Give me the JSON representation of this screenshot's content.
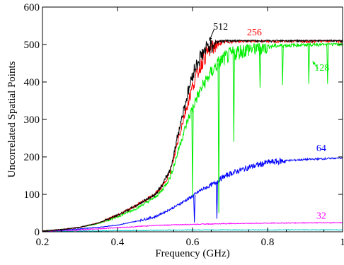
{
  "chart_data": {
    "type": "line",
    "title": "",
    "xlabel": "Frequency (GHz)",
    "ylabel": "Uncorrelated Spatial Points",
    "xlim": [
      0.2,
      1.0
    ],
    "ylim": [
      0,
      600
    ],
    "xticks": [
      0.2,
      0.4,
      0.6,
      0.8,
      1.0
    ],
    "xtick_labels": [
      "0.2",
      "0.4",
      "0.6",
      "0.8",
      "1"
    ],
    "yticks": [
      0,
      100,
      200,
      300,
      400,
      500,
      600
    ],
    "ytick_labels": [
      "0",
      "100",
      "200",
      "300",
      "400",
      "500",
      "600"
    ],
    "grid": false,
    "legend": "none",
    "series": [
      {
        "name": "512",
        "color": "#000000",
        "x": [
          0.2,
          0.25,
          0.3,
          0.35,
          0.4,
          0.45,
          0.5,
          0.52,
          0.54,
          0.55,
          0.56,
          0.57,
          0.58,
          0.59,
          0.6,
          0.61,
          0.62,
          0.63,
          0.64,
          0.65,
          0.66,
          0.67,
          0.68,
          0.7,
          0.75,
          0.8,
          0.85,
          0.9,
          0.95,
          1.0
        ],
        "y": [
          2,
          6,
          12,
          24,
          44,
          70,
          100,
          125,
          165,
          205,
          255,
          300,
          340,
          380,
          420,
          445,
          465,
          480,
          492,
          500,
          505,
          508,
          510,
          512,
          512,
          512,
          512,
          512,
          512,
          512
        ]
      },
      {
        "name": "256",
        "color": "#ff0000",
        "x": [
          0.2,
          0.25,
          0.3,
          0.35,
          0.4,
          0.45,
          0.5,
          0.52,
          0.54,
          0.55,
          0.56,
          0.57,
          0.58,
          0.59,
          0.6,
          0.61,
          0.62,
          0.63,
          0.64,
          0.65,
          0.66,
          0.67,
          0.68,
          0.7,
          0.75,
          0.8,
          0.85,
          0.9,
          0.95,
          1.0
        ],
        "y": [
          2,
          6,
          12,
          24,
          44,
          70,
          100,
          122,
          160,
          195,
          240,
          280,
          318,
          352,
          388,
          415,
          440,
          462,
          478,
          490,
          498,
          503,
          506,
          509,
          511,
          511,
          511,
          511,
          511,
          511
        ]
      },
      {
        "name": "128",
        "color": "#00ee00",
        "x": [
          0.2,
          0.25,
          0.3,
          0.35,
          0.4,
          0.45,
          0.5,
          0.52,
          0.54,
          0.55,
          0.56,
          0.57,
          0.58,
          0.59,
          0.6,
          0.61,
          0.62,
          0.63,
          0.64,
          0.65,
          0.66,
          0.67,
          0.68,
          0.7,
          0.72,
          0.75,
          0.8,
          0.85,
          0.9,
          0.95,
          1.0
        ],
        "y": [
          2,
          6,
          12,
          22,
          40,
          62,
          92,
          112,
          145,
          175,
          210,
          245,
          275,
          305,
          330,
          355,
          375,
          395,
          410,
          425,
          440,
          450,
          460,
          472,
          480,
          488,
          495,
          498,
          500,
          502,
          503
        ]
      },
      {
        "name": "64",
        "color": "#0000ff",
        "x": [
          0.2,
          0.25,
          0.3,
          0.35,
          0.4,
          0.45,
          0.5,
          0.55,
          0.6,
          0.62,
          0.64,
          0.66,
          0.68,
          0.7,
          0.72,
          0.75,
          0.8,
          0.85,
          0.9,
          0.95,
          1.0
        ],
        "y": [
          2,
          4,
          8,
          12,
          18,
          28,
          40,
          65,
          95,
          110,
          120,
          130,
          145,
          155,
          162,
          172,
          185,
          190,
          193,
          195,
          198
        ]
      },
      {
        "name": "32",
        "color": "#ff00ff",
        "x": [
          0.2,
          0.25,
          0.3,
          0.35,
          0.4,
          0.45,
          0.5,
          0.6,
          0.7,
          0.8,
          0.9,
          1.0
        ],
        "y": [
          1,
          3,
          5,
          8,
          11,
          14,
          17,
          20,
          22,
          23,
          24,
          25
        ]
      },
      {
        "name": "",
        "color": "#00cccc",
        "x": [
          0.2,
          0.3,
          0.4,
          0.5,
          0.6,
          0.7,
          0.8,
          0.9,
          1.0
        ],
        "y": [
          1,
          2,
          3,
          4,
          5,
          5,
          5,
          6,
          6
        ]
      }
    ],
    "annotations": [
      {
        "text": "512",
        "color": "#000000",
        "x": 0.655,
        "y": 540
      },
      {
        "text": "256",
        "color": "#ff0000",
        "x": 0.745,
        "y": 525
      },
      {
        "text": "128",
        "color": "#00ee00",
        "x": 0.925,
        "y": 430
      },
      {
        "text": "64",
        "color": "#0000ff",
        "x": 0.93,
        "y": 215
      },
      {
        "text": "32",
        "color": "#ff00ff",
        "x": 0.93,
        "y": 35
      }
    ],
    "dips": [
      {
        "series": "128",
        "x": [
          0.6,
          0.67,
          0.71,
          0.78,
          0.84,
          0.91,
          0.96
        ],
        "y": [
          95,
          50,
          240,
          385,
          392,
          395,
          395
        ]
      },
      {
        "series": "64",
        "x": [
          0.605,
          0.665
        ],
        "y": [
          25,
          35
        ]
      }
    ]
  }
}
